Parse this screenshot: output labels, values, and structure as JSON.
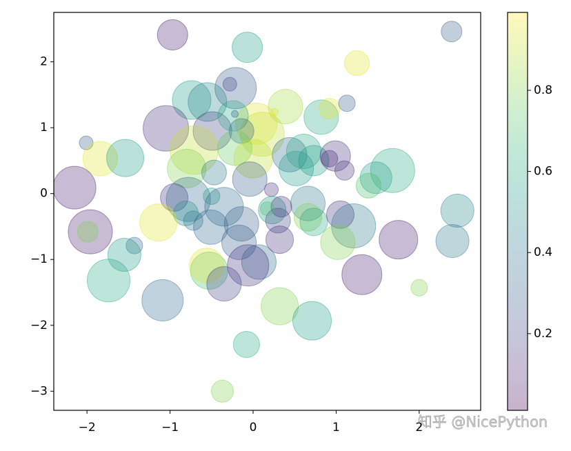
{
  "chart_data": {
    "type": "scatter",
    "x": [
      -0.97,
      -0.07,
      2.39,
      1.25,
      -0.21,
      -0.28,
      -0.74,
      -0.55,
      0.39,
      0.82,
      0.92,
      1.13,
      -1.05,
      -0.49,
      0.04,
      0.11,
      -0.24,
      -0.14,
      -2.01,
      -1.84,
      -1.54,
      -0.71,
      -0.8,
      -0.22,
      0.0,
      0.44,
      0.61,
      0.73,
      0.99,
      0.92,
      1.1,
      1.68,
      1.48,
      1.39,
      -2.15,
      -0.47,
      -0.04,
      0.22,
      0.52,
      -0.95,
      -0.78,
      -0.81,
      -0.72,
      -0.5,
      -0.35,
      -0.51,
      0.66,
      0.66,
      0.73,
      0.23,
      0.34,
      0.3,
      0.32,
      1.05,
      1.21,
      1.02,
      1.75,
      2.46,
      2.4,
      -1.96,
      -1.99,
      -1.14,
      -1.43,
      -1.55,
      -1.74,
      -1.09,
      -0.14,
      -0.17,
      0.07,
      -0.06,
      -0.53,
      -0.56,
      -0.35,
      1.31,
      2.0,
      0.32,
      0.71,
      -0.08,
      -0.37,
      0.17,
      -0.22,
      0.26
    ],
    "y": [
      2.41,
      2.22,
      2.46,
      1.98,
      1.6,
      1.66,
      1.42,
      1.39,
      1.32,
      1.16,
      1.29,
      1.37,
      0.99,
      0.95,
      1.06,
      0.9,
      1.18,
      0.95,
      0.77,
      0.53,
      0.54,
      0.66,
      0.38,
      0.69,
      0.53,
      0.59,
      0.64,
      0.5,
      0.57,
      0.53,
      0.35,
      0.35,
      0.24,
      0.12,
      0.09,
      0.32,
      0.22,
      0.06,
      0.38,
      -0.06,
      -0.09,
      -0.3,
      -0.41,
      -0.04,
      -0.2,
      -0.51,
      -0.15,
      -0.36,
      -0.43,
      -0.25,
      -0.2,
      -0.41,
      -0.7,
      -0.32,
      -0.49,
      -0.74,
      -0.7,
      -0.26,
      -0.72,
      -0.58,
      -0.58,
      -0.44,
      -0.79,
      -0.93,
      -1.32,
      -1.62,
      -0.46,
      -0.74,
      -1.04,
      -1.09,
      -1.17,
      -1.09,
      -1.37,
      -1.23,
      -1.43,
      -1.71,
      -1.93,
      -2.29,
      -3.0,
      -0.23,
      1.21,
      1.24
    ],
    "sizes": [
      598,
      598,
      278,
      400,
      1111,
      123,
      968,
      968,
      772,
      772,
      278,
      178,
      1344,
      968,
      1111,
      1264,
      598,
      400,
      123,
      772,
      900,
      1512,
      968,
      772,
      968,
      772,
      772,
      598,
      598,
      178,
      242,
      1264,
      653,
      400,
      1186,
      400,
      772,
      123,
      772,
      494,
      1264,
      400,
      242,
      178,
      968,
      772,
      772,
      494,
      494,
      494,
      278,
      400,
      494,
      494,
      1264,
      772,
      968,
      711,
      711,
      1264,
      278,
      900,
      178,
      711,
      1186,
      1111,
      772,
      772,
      772,
      1111,
      900,
      772,
      772,
      1038,
      178,
      900,
      968,
      446,
      316,
      123,
      31,
      31
    ],
    "color_values": [
      0.1,
      0.55,
      0.3,
      0.95,
      0.3,
      0.2,
      0.55,
      0.45,
      0.85,
      0.6,
      0.95,
      0.3,
      0.15,
      0.2,
      0.95,
      0.9,
      0.6,
      0.35,
      0.3,
      0.95,
      0.55,
      0.9,
      0.8,
      0.75,
      0.9,
      0.35,
      0.6,
      0.55,
      0.15,
      0.1,
      0.15,
      0.6,
      0.55,
      0.7,
      0.1,
      0.4,
      0.3,
      0.15,
      0.55,
      0.15,
      0.35,
      0.5,
      0.4,
      0.55,
      0.35,
      0.35,
      0.4,
      0.8,
      0.6,
      0.55,
      0.15,
      0.2,
      0.15,
      0.15,
      0.4,
      0.8,
      0.1,
      0.45,
      0.4,
      0.1,
      0.8,
      0.95,
      0.35,
      0.55,
      0.6,
      0.35,
      0.3,
      0.3,
      0.35,
      0.15,
      0.7,
      0.95,
      0.2,
      0.1,
      0.8,
      0.8,
      0.55,
      0.6,
      0.8,
      0.7,
      0.3,
      0.95
    ],
    "colormap": "viridis",
    "alpha": 0.3,
    "clim": [
      0.011,
      0.992
    ],
    "colorbar_ticks": [
      0.2,
      0.4,
      0.6,
      0.8
    ],
    "xlim": [
      -2.4,
      2.74
    ],
    "ylim": [
      -3.29,
      2.75
    ],
    "xticks": [
      {
        "value": -2,
        "label": "−2"
      },
      {
        "value": -1,
        "label": "−1"
      },
      0,
      1,
      2
    ],
    "yticks": [
      {
        "value": -3,
        "label": "−3"
      },
      {
        "value": -2,
        "label": "−2"
      },
      {
        "value": -1,
        "label": "−1"
      },
      0,
      1,
      2
    ],
    "watermark": "知乎 @NicePython"
  }
}
